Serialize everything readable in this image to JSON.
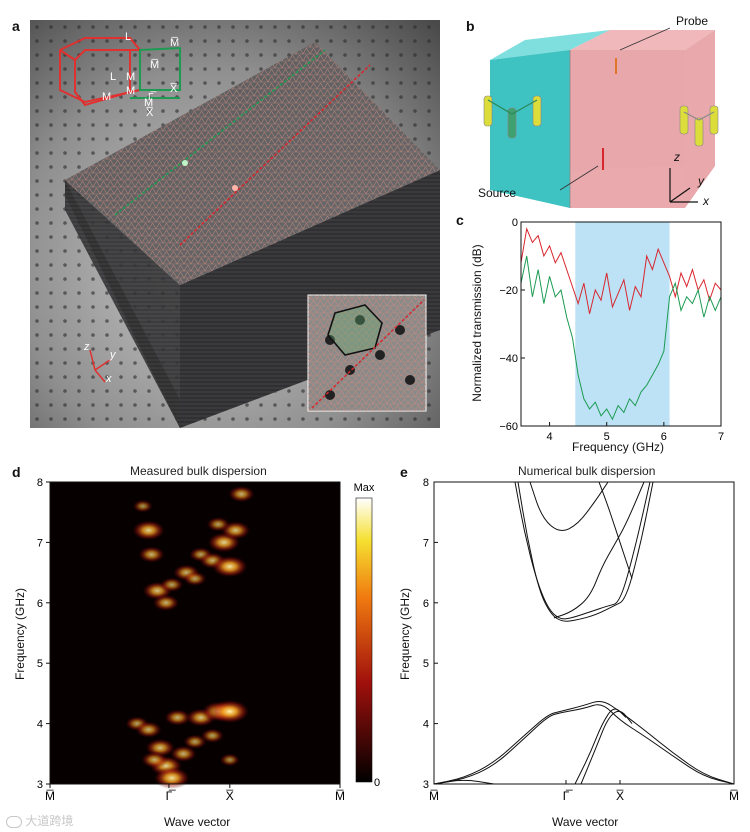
{
  "panels": {
    "a": {
      "label": "a",
      "bz_labels": [
        "L",
        "L",
        "M̅",
        "M̅",
        "M",
        "M",
        "M",
        "M",
        "Γ̅",
        "X̅",
        "X̅"
      ],
      "axes": [
        "z",
        "y",
        "x"
      ]
    },
    "b": {
      "label": "b",
      "probe": "Probe",
      "source": "Source",
      "axes": [
        "z",
        "y",
        "x"
      ]
    },
    "c": {
      "label": "c",
      "ylabel": "Normalized transmission (dB)",
      "xlabel": "Frequency (GHz)",
      "yticks": [
        "0",
        "−20",
        "−40",
        "−60"
      ],
      "xticks": [
        "4",
        "5",
        "6",
        "7"
      ]
    },
    "d": {
      "label": "d",
      "title": "Measured bulk dispersion",
      "ylabel": "Frequency (GHz)",
      "xlabel": "Wave vector",
      "yticks": [
        "3",
        "4",
        "5",
        "6",
        "7",
        "8"
      ],
      "xticks": [
        "M̅",
        "Γ̅",
        "X̅",
        "M̅"
      ],
      "colorbar_max": "Max",
      "colorbar_min": "0"
    },
    "e": {
      "label": "e",
      "title": "Numerical bulk dispersion",
      "ylabel": "Frequency (GHz)",
      "xlabel": "Wave vector",
      "yticks": [
        "3",
        "4",
        "5",
        "6",
        "7",
        "8"
      ],
      "xticks": [
        "M̅",
        "Γ̅",
        "X̅",
        "M̅"
      ]
    }
  },
  "watermark": "大道跨境",
  "colors": {
    "red": "#d8262d",
    "green": "#1c9b52",
    "band": "#bde2f6",
    "slab": "#3f3f42",
    "cyan": "#40c4c4",
    "pink": "#e8a0a4"
  },
  "chart_data": [
    {
      "type": "line",
      "panel": "c",
      "xlim": [
        3.5,
        7
      ],
      "ylim": [
        -60,
        0
      ],
      "shaded_band": [
        4.45,
        6.1
      ],
      "series": [
        {
          "color": "red",
          "x": [
            3.5,
            3.6,
            3.7,
            3.8,
            3.9,
            4.0,
            4.1,
            4.2,
            4.3,
            4.4,
            4.5,
            4.6,
            4.7,
            4.8,
            4.9,
            5.0,
            5.1,
            5.2,
            5.3,
            5.4,
            5.5,
            5.6,
            5.7,
            5.8,
            5.9,
            6.0,
            6.1,
            6.2,
            6.3,
            6.4,
            6.5,
            6.6,
            6.7,
            6.8,
            6.9,
            7.0
          ],
          "y": [
            -12,
            -2,
            -6,
            -4,
            -10,
            -7,
            -12,
            -9,
            -14,
            -19,
            -24,
            -18,
            -27,
            -20,
            -23,
            -15,
            -25,
            -21,
            -17,
            -26,
            -19,
            -22,
            -10,
            -14,
            -8,
            -12,
            -16,
            -22,
            -15,
            -19,
            -14,
            -20,
            -17,
            -23,
            -18,
            -20
          ]
        },
        {
          "color": "green",
          "x": [
            3.5,
            3.6,
            3.7,
            3.8,
            3.9,
            4.0,
            4.1,
            4.2,
            4.3,
            4.4,
            4.5,
            4.6,
            4.7,
            4.8,
            4.9,
            5.0,
            5.1,
            5.2,
            5.3,
            5.4,
            5.5,
            5.6,
            5.7,
            5.8,
            5.9,
            6.0,
            6.1,
            6.2,
            6.3,
            6.4,
            6.5,
            6.6,
            6.7,
            6.8,
            6.9,
            7.0
          ],
          "y": [
            -18,
            -10,
            -22,
            -14,
            -24,
            -16,
            -22,
            -20,
            -28,
            -34,
            -45,
            -52,
            -55,
            -53,
            -57,
            -55,
            -58,
            -54,
            -56,
            -52,
            -54,
            -50,
            -48,
            -45,
            -42,
            -38,
            -22,
            -18,
            -26,
            -22,
            -24,
            -20,
            -28,
            -22,
            -26,
            -22
          ]
        }
      ]
    },
    {
      "type": "heatmap",
      "panel": "d",
      "ylim": [
        3,
        8
      ],
      "x_ticks": [
        "M̅",
        "Γ̅",
        "X̅",
        "M̅"
      ],
      "blobs": [
        {
          "k": 0.3,
          "f": 4.0,
          "v": 0.5
        },
        {
          "k": 0.34,
          "f": 3.9,
          "v": 0.6
        },
        {
          "k": 0.38,
          "f": 3.6,
          "v": 0.7
        },
        {
          "k": 0.4,
          "f": 3.3,
          "v": 0.8
        },
        {
          "k": 0.42,
          "f": 3.1,
          "v": 0.9
        },
        {
          "k": 0.46,
          "f": 3.5,
          "v": 0.6
        },
        {
          "k": 0.44,
          "f": 4.1,
          "v": 0.6
        },
        {
          "k": 0.52,
          "f": 4.1,
          "v": 0.7
        },
        {
          "k": 0.58,
          "f": 4.2,
          "v": 0.8
        },
        {
          "k": 0.62,
          "f": 4.2,
          "v": 1.0
        },
        {
          "k": 0.56,
          "f": 3.8,
          "v": 0.5
        },
        {
          "k": 0.62,
          "f": 3.4,
          "v": 0.4
        },
        {
          "k": 0.5,
          "f": 3.7,
          "v": 0.5
        },
        {
          "k": 0.36,
          "f": 3.4,
          "v": 0.6
        },
        {
          "k": 0.34,
          "f": 7.2,
          "v": 0.8
        },
        {
          "k": 0.35,
          "f": 6.8,
          "v": 0.6
        },
        {
          "k": 0.37,
          "f": 6.2,
          "v": 0.7
        },
        {
          "k": 0.4,
          "f": 6.0,
          "v": 0.6
        },
        {
          "k": 0.42,
          "f": 6.3,
          "v": 0.5
        },
        {
          "k": 0.47,
          "f": 6.5,
          "v": 0.6
        },
        {
          "k": 0.5,
          "f": 6.4,
          "v": 0.5
        },
        {
          "k": 0.52,
          "f": 6.8,
          "v": 0.5
        },
        {
          "k": 0.56,
          "f": 6.7,
          "v": 0.6
        },
        {
          "k": 0.6,
          "f": 7.0,
          "v": 0.8
        },
        {
          "k": 0.62,
          "f": 6.6,
          "v": 0.9
        },
        {
          "k": 0.64,
          "f": 7.2,
          "v": 0.7
        },
        {
          "k": 0.66,
          "f": 7.8,
          "v": 0.6
        },
        {
          "k": 0.32,
          "f": 7.6,
          "v": 0.4
        },
        {
          "k": 0.58,
          "f": 7.3,
          "v": 0.5
        }
      ]
    },
    {
      "type": "line",
      "panel": "e",
      "xlim": [
        0,
        1
      ],
      "ylim": [
        3,
        8
      ],
      "x_ticks": [
        "M̅",
        "Γ̅",
        "X̅",
        "M̅"
      ],
      "series": [
        {
          "x": [
            0,
            0.1,
            0.2,
            0.3,
            0.38,
            0.42,
            0.5,
            0.56,
            0.62,
            0.7,
            0.8,
            0.9,
            1.0
          ],
          "y": [
            3.0,
            3.1,
            3.35,
            3.8,
            4.15,
            4.2,
            4.3,
            4.4,
            4.2,
            3.9,
            3.5,
            3.15,
            3.0
          ]
        },
        {
          "x": [
            0,
            0.1,
            0.2,
            0.3,
            0.38,
            0.42,
            0.5,
            0.56,
            0.62,
            0.7,
            0.8,
            0.9,
            1.0
          ],
          "y": [
            3.0,
            3.08,
            3.3,
            3.75,
            4.12,
            4.18,
            4.25,
            4.35,
            4.05,
            3.8,
            3.45,
            3.12,
            3.0
          ]
        },
        {
          "x": [
            0.47,
            0.52,
            0.56,
            0.6,
            0.64
          ],
          "y": [
            3.0,
            3.5,
            4.0,
            4.3,
            4.1
          ]
        },
        {
          "x": [
            0.49,
            0.54,
            0.58,
            0.62,
            0.66
          ],
          "y": [
            3.0,
            3.6,
            4.1,
            4.25,
            4.0
          ]
        },
        {
          "x": [
            0,
            0.1,
            0.2
          ],
          "y": [
            3.0,
            3.08,
            3.0
          ]
        },
        {
          "x": [
            0.27,
            0.3,
            0.34,
            0.38,
            0.42,
            0.46,
            0.52,
            0.58,
            0.62,
            0.67,
            0.72
          ],
          "y": [
            8.0,
            7.2,
            6.4,
            5.9,
            5.72,
            5.75,
            5.85,
            5.95,
            6.0,
            6.9,
            8.0
          ]
        },
        {
          "x": [
            0.28,
            0.31,
            0.35,
            0.39,
            0.43,
            0.48,
            0.54,
            0.6,
            0.64,
            0.69,
            0.73
          ],
          "y": [
            8.0,
            7.1,
            6.2,
            5.8,
            5.68,
            5.72,
            5.8,
            5.95,
            6.05,
            7.0,
            8.0
          ]
        },
        {
          "x": [
            0.32,
            0.36,
            0.42,
            0.48,
            0.54,
            0.58
          ],
          "y": [
            8.0,
            7.4,
            7.15,
            7.3,
            7.7,
            8.0
          ]
        },
        {
          "x": [
            0.4,
            0.46,
            0.52,
            0.56,
            0.6,
            0.64,
            0.7
          ],
          "y": [
            5.75,
            5.85,
            6.1,
            6.6,
            6.95,
            7.3,
            8.0
          ]
        },
        {
          "x": [
            0.55,
            0.58,
            0.6,
            0.62,
            0.66
          ],
          "y": [
            8.0,
            7.6,
            7.3,
            7.0,
            6.4
          ]
        }
      ]
    }
  ]
}
